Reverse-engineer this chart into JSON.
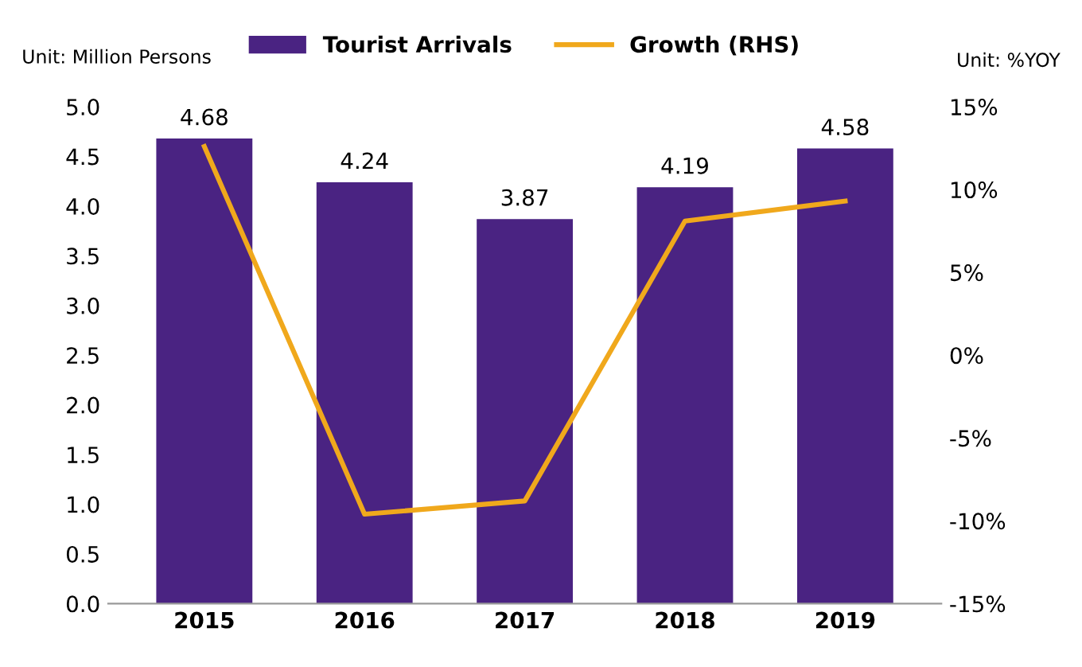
{
  "chart_data": {
    "type": "bar",
    "categories": [
      "2015",
      "2016",
      "2017",
      "2018",
      "2019"
    ],
    "series": [
      {
        "name": "Tourist Arrivals",
        "color": "#4a2382",
        "values": [
          4.68,
          4.24,
          3.87,
          4.19,
          4.58
        ],
        "value_labels": [
          "4.68",
          "4.24",
          "3.87",
          "4.19",
          "4.58"
        ]
      },
      {
        "name": "Growth (RHS)",
        "type": "line",
        "axis": "y2",
        "color": "#f0a81c",
        "values": [
          12.6,
          -9.6,
          -8.8,
          8.1,
          9.3
        ]
      }
    ],
    "ylabel": "Unit: Million Persons",
    "y2label": "Unit: %YOY",
    "ylim": [
      0,
      5
    ],
    "yticks": [
      {
        "value": 0,
        "label": "0.0"
      },
      {
        "value": 0.5,
        "label": "0.5"
      },
      {
        "value": 1,
        "label": "1.0"
      },
      {
        "value": 1.5,
        "label": "1.5"
      },
      {
        "value": 2,
        "label": "2.0"
      },
      {
        "value": 2.5,
        "label": "2.5"
      },
      {
        "value": 3,
        "label": "3.0"
      },
      {
        "value": 3.5,
        "label": "3.5"
      },
      {
        "value": 4,
        "label": "4.0"
      },
      {
        "value": 4.5,
        "label": "4.5"
      },
      {
        "value": 5,
        "label": "5.0"
      }
    ],
    "y2lim": [
      -15,
      15
    ],
    "y2ticks": [
      {
        "value": -15,
        "label": "-15%"
      },
      {
        "value": -10,
        "label": "-10%"
      },
      {
        "value": -5,
        "label": "-5%"
      },
      {
        "value": 0,
        "label": "0%"
      },
      {
        "value": 5,
        "label": "5%"
      },
      {
        "value": 10,
        "label": "10%"
      },
      {
        "value": 15,
        "label": "15%"
      }
    ],
    "legend": "top",
    "grid": false,
    "marker": "none",
    "line_style": "solid"
  }
}
